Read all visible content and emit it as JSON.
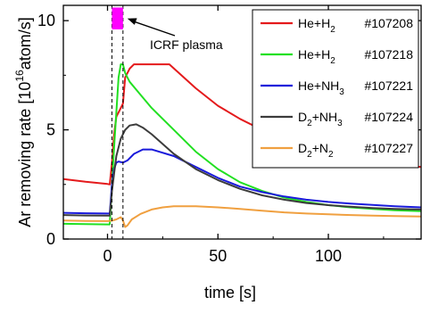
{
  "chart_data": {
    "type": "line",
    "xlabel": "time [s]",
    "ylabel": "Ar removing rate [10",
    "ylabel_sup": "16",
    "ylabel_tail": "atom/s]",
    "xlim": [
      -20,
      142
    ],
    "ylim": [
      0,
      10.7
    ],
    "x_ticks": [
      0,
      50,
      100
    ],
    "y_ticks": [
      0,
      5,
      10
    ],
    "grid": false,
    "legend_position": "top-right",
    "annotation": {
      "text": "ICRF plasma",
      "arrow_target": [
        9,
        10.1
      ],
      "bar_x": [
        2,
        7
      ],
      "bar_y": [
        9.6,
        10.6
      ],
      "bar_color": "#ff00ff"
    },
    "vlines": [
      2,
      7
    ],
    "series": [
      {
        "name": "He+H2",
        "formula": [
          "He+H",
          "2"
        ],
        "shot": "#107208",
        "color": "#e41a1c",
        "points": [
          [
            -20,
            2.75
          ],
          [
            -10,
            2.62
          ],
          [
            0,
            2.52
          ],
          [
            1,
            2.5
          ],
          [
            2,
            3.5
          ],
          [
            3,
            4.8
          ],
          [
            4,
            5.6
          ],
          [
            5,
            5.8
          ],
          [
            6,
            6.0
          ],
          [
            7,
            6.2
          ],
          [
            8,
            7.4
          ],
          [
            10,
            7.8
          ],
          [
            12,
            8.0
          ],
          [
            20,
            8.0
          ],
          [
            28,
            8.0
          ],
          [
            40,
            6.9
          ],
          [
            50,
            6.1
          ],
          [
            60,
            5.5
          ],
          [
            70,
            5.0
          ],
          [
            80,
            4.6
          ],
          [
            90,
            4.3
          ],
          [
            100,
            4.0
          ],
          [
            110,
            3.8
          ],
          [
            120,
            3.6
          ],
          [
            130,
            3.45
          ],
          [
            142,
            3.3
          ]
        ]
      },
      {
        "name": "He+H2",
        "formula": [
          "He+H",
          "2"
        ],
        "shot": "#107218",
        "color": "#22e022",
        "points": [
          [
            -20,
            0.7
          ],
          [
            -10,
            0.68
          ],
          [
            0,
            0.67
          ],
          [
            1,
            0.67
          ],
          [
            2,
            2.5
          ],
          [
            3,
            4.2
          ],
          [
            4,
            5.8
          ],
          [
            5,
            7.4
          ],
          [
            6,
            8.0
          ],
          [
            7,
            8.0
          ],
          [
            8,
            7.6
          ],
          [
            10,
            7.2
          ],
          [
            15,
            6.6
          ],
          [
            20,
            6.0
          ],
          [
            30,
            5.0
          ],
          [
            40,
            4.0
          ],
          [
            50,
            3.2
          ],
          [
            60,
            2.6
          ],
          [
            70,
            2.2
          ],
          [
            80,
            1.9
          ],
          [
            90,
            1.7
          ],
          [
            100,
            1.55
          ],
          [
            110,
            1.45
          ],
          [
            120,
            1.38
          ],
          [
            130,
            1.32
          ],
          [
            142,
            1.28
          ]
        ]
      },
      {
        "name": "He+NH3",
        "formula": [
          "He+NH",
          "3"
        ],
        "shot": "#107221",
        "color": "#1a1adb",
        "points": [
          [
            -20,
            1.2
          ],
          [
            -10,
            1.18
          ],
          [
            0,
            1.17
          ],
          [
            1,
            1.17
          ],
          [
            2,
            2.5
          ],
          [
            3,
            3.2
          ],
          [
            4,
            3.5
          ],
          [
            5,
            3.55
          ],
          [
            7,
            3.5
          ],
          [
            9,
            3.6
          ],
          [
            12,
            3.9
          ],
          [
            16,
            4.1
          ],
          [
            20,
            4.1
          ],
          [
            30,
            3.8
          ],
          [
            40,
            3.3
          ],
          [
            50,
            2.8
          ],
          [
            60,
            2.4
          ],
          [
            70,
            2.15
          ],
          [
            80,
            1.95
          ],
          [
            90,
            1.8
          ],
          [
            100,
            1.7
          ],
          [
            110,
            1.62
          ],
          [
            120,
            1.56
          ],
          [
            130,
            1.5
          ],
          [
            142,
            1.45
          ]
        ]
      },
      {
        "name": "D2+NH3",
        "formula": [
          "D",
          "2",
          "+NH",
          "3"
        ],
        "shot": "#107224",
        "color": "#3c3c3c",
        "points": [
          [
            -20,
            1.1
          ],
          [
            -10,
            1.08
          ],
          [
            0,
            1.07
          ],
          [
            1,
            1.07
          ],
          [
            2,
            2.2
          ],
          [
            3,
            3.0
          ],
          [
            4,
            3.8
          ],
          [
            6,
            4.6
          ],
          [
            8,
            5.0
          ],
          [
            10,
            5.2
          ],
          [
            13,
            5.25
          ],
          [
            16,
            5.1
          ],
          [
            20,
            4.8
          ],
          [
            30,
            3.9
          ],
          [
            40,
            3.2
          ],
          [
            50,
            2.7
          ],
          [
            60,
            2.3
          ],
          [
            70,
            2.0
          ],
          [
            80,
            1.8
          ],
          [
            90,
            1.65
          ],
          [
            100,
            1.55
          ],
          [
            110,
            1.48
          ],
          [
            120,
            1.42
          ],
          [
            130,
            1.38
          ],
          [
            142,
            1.35
          ]
        ]
      },
      {
        "name": "D2+N2",
        "formula": [
          "D",
          "2",
          "+N",
          "2"
        ],
        "shot": "#107227",
        "color": "#f0a040",
        "points": [
          [
            -20,
            0.85
          ],
          [
            -10,
            0.83
          ],
          [
            0,
            0.82
          ],
          [
            2,
            0.84
          ],
          [
            4,
            0.9
          ],
          [
            6,
            1.0
          ],
          [
            7,
            0.85
          ],
          [
            8,
            0.55
          ],
          [
            9,
            0.62
          ],
          [
            11,
            0.9
          ],
          [
            15,
            1.15
          ],
          [
            20,
            1.35
          ],
          [
            25,
            1.45
          ],
          [
            30,
            1.5
          ],
          [
            40,
            1.5
          ],
          [
            50,
            1.45
          ],
          [
            60,
            1.38
          ],
          [
            70,
            1.3
          ],
          [
            80,
            1.22
          ],
          [
            90,
            1.17
          ],
          [
            100,
            1.13
          ],
          [
            110,
            1.1
          ],
          [
            120,
            1.07
          ],
          [
            130,
            1.05
          ],
          [
            142,
            1.03
          ]
        ]
      }
    ]
  }
}
